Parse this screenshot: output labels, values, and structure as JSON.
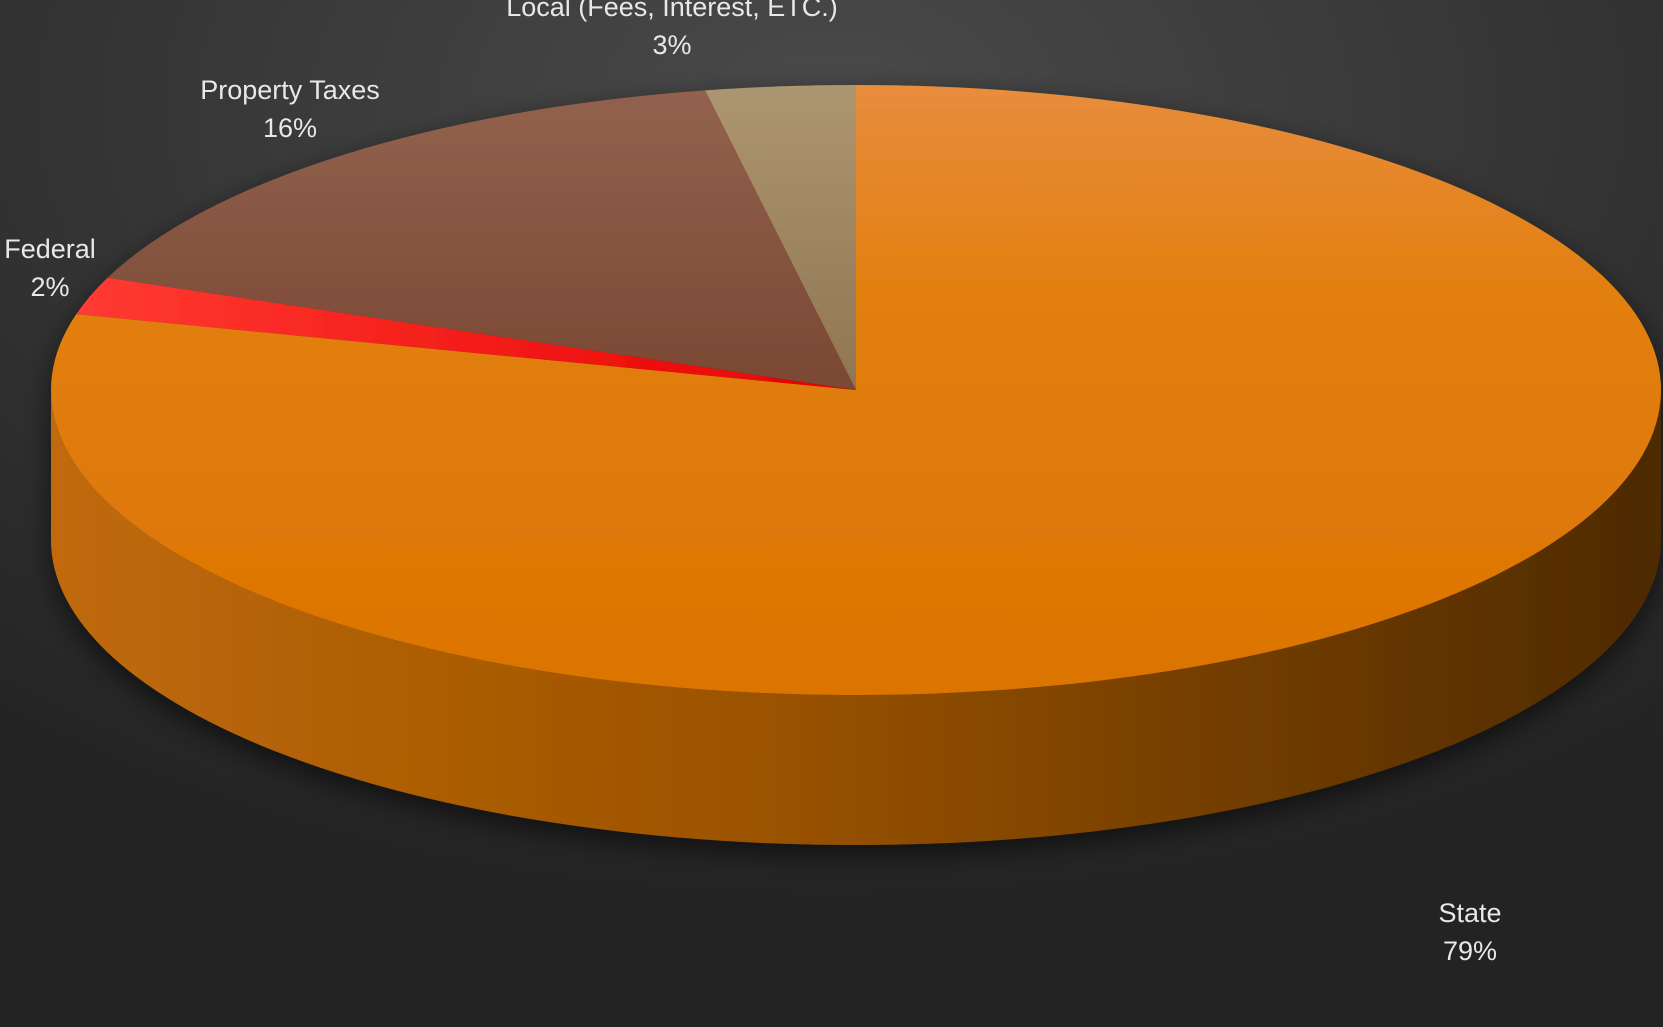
{
  "chart_data": {
    "type": "pie",
    "style": "3d",
    "title": "",
    "start_angle_deg": 90,
    "direction": "clockwise",
    "slices": [
      {
        "label": "State",
        "percent_label": "79%",
        "value": 79,
        "color": "#e17a0a",
        "side_color": "#a65505"
      },
      {
        "label": "Federal",
        "percent_label": "2%",
        "value": 2,
        "color": "#ff1a10",
        "side_color": "#b30d08"
      },
      {
        "label": "Property Taxes",
        "percent_label": "16%",
        "value": 16,
        "color": "#804e38",
        "side_color": "#5a3626"
      },
      {
        "label": "Local (Fees, Interest, ETC.)",
        "percent_label": "3%",
        "value": 3,
        "color": "#a08860",
        "side_color": "#6e5d40"
      }
    ],
    "legend": "none",
    "data_labels": "outside"
  },
  "background_color": "#2a2a2a"
}
